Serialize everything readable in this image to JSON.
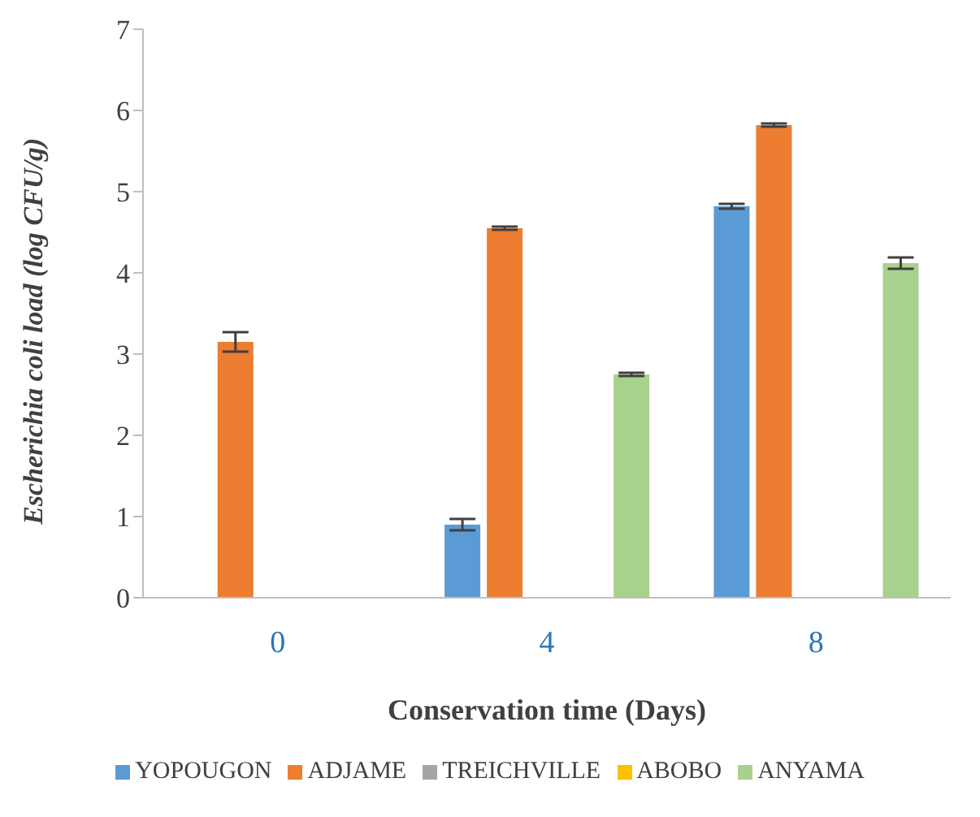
{
  "chart_data": {
    "type": "bar",
    "xlabel": "Conservation time (Days)",
    "ylabel": "Escherichia coli  load (log CFU/g)",
    "categories": [
      "0",
      "4",
      "8"
    ],
    "series": [
      {
        "name": "YOPOUGON",
        "color": "#5b9bd5",
        "values": [
          0,
          0.9,
          4.82
        ],
        "errors": [
          null,
          0.07,
          0.03
        ]
      },
      {
        "name": "ADJAME",
        "color": "#ed7d31",
        "values": [
          3.15,
          4.55,
          5.82
        ],
        "errors": [
          0.12,
          0.02,
          0.02
        ]
      },
      {
        "name": "TREICHVILLE",
        "color": "#a5a5a5",
        "values": [
          0,
          0,
          0
        ]
      },
      {
        "name": "ABOBO",
        "color": "#ffc000",
        "values": [
          0,
          0,
          0
        ]
      },
      {
        "name": "ANYAMA",
        "color": "#a9d18e",
        "values": [
          0,
          2.75,
          4.12
        ],
        "errors": [
          null,
          0.02,
          0.07
        ]
      }
    ],
    "ylim": [
      0,
      7
    ],
    "yticks": [
      0,
      1,
      2,
      3,
      4,
      5,
      6,
      7
    ],
    "grid": false,
    "legend": "bottom"
  }
}
